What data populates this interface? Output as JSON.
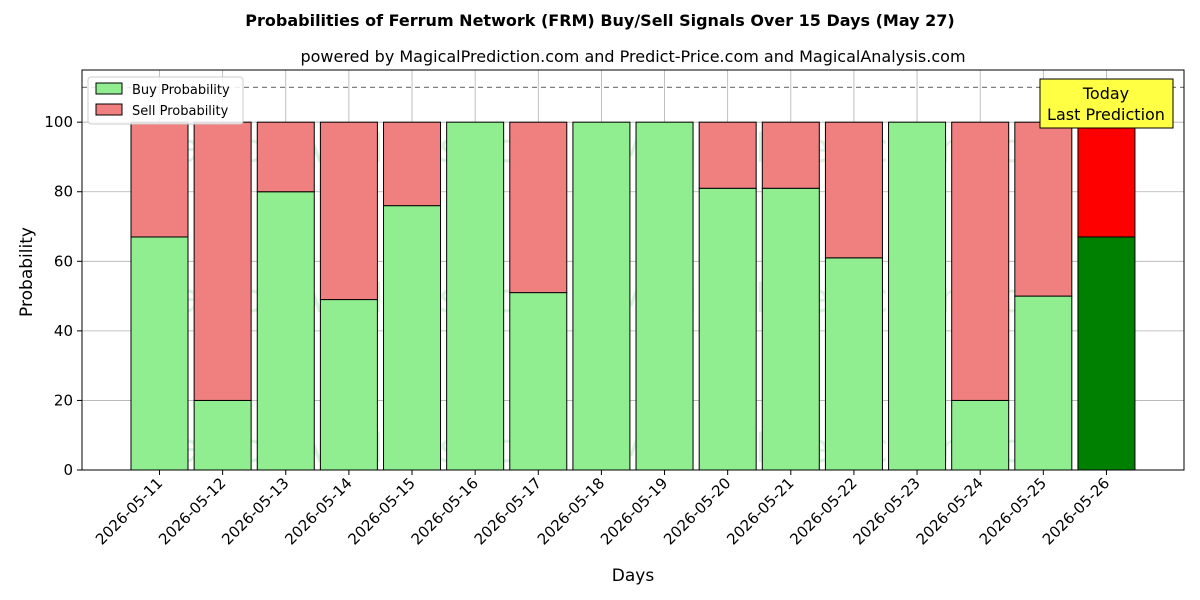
{
  "chart_data": {
    "type": "bar",
    "stacked": true,
    "title": "Probabilities of Ferrum Network (FRM) Buy/Sell Signals Over 15 Days (May 27)",
    "subtitle": "powered by MagicalPrediction.com and Predict-Price.com and MagicalAnalysis.com",
    "xlabel": "Days",
    "ylabel": "Probability",
    "ylim": [
      0,
      115
    ],
    "yticks": [
      0,
      20,
      40,
      60,
      80,
      100
    ],
    "reference_line": 110,
    "grid": true,
    "legend_position": "top-left",
    "categories": [
      "2026-05-11",
      "2026-05-12",
      "2026-05-13",
      "2026-05-14",
      "2026-05-15",
      "2026-05-16",
      "2026-05-17",
      "2026-05-18",
      "2026-05-19",
      "2026-05-20",
      "2026-05-21",
      "2026-05-22",
      "2026-05-23",
      "2026-05-24",
      "2026-05-25",
      "2026-05-26"
    ],
    "series": [
      {
        "name": "Buy Probability",
        "color": "#90ee90",
        "highlight_color": "#008000",
        "values": [
          67,
          20,
          80,
          49,
          76,
          100,
          51,
          100,
          100,
          81,
          81,
          61,
          100,
          20,
          50,
          67
        ]
      },
      {
        "name": "Sell Probability",
        "color": "#f08080",
        "highlight_color": "#ff0000",
        "values": [
          33,
          80,
          20,
          51,
          24,
          0,
          49,
          0,
          0,
          19,
          19,
          39,
          0,
          80,
          50,
          33
        ]
      }
    ],
    "annotation": {
      "lines": [
        "Today",
        "Last Prediction"
      ],
      "color": "#ffff44"
    },
    "watermarks": [
      "MagicalAnalysis.com",
      "MagicalPrediction.com"
    ]
  }
}
